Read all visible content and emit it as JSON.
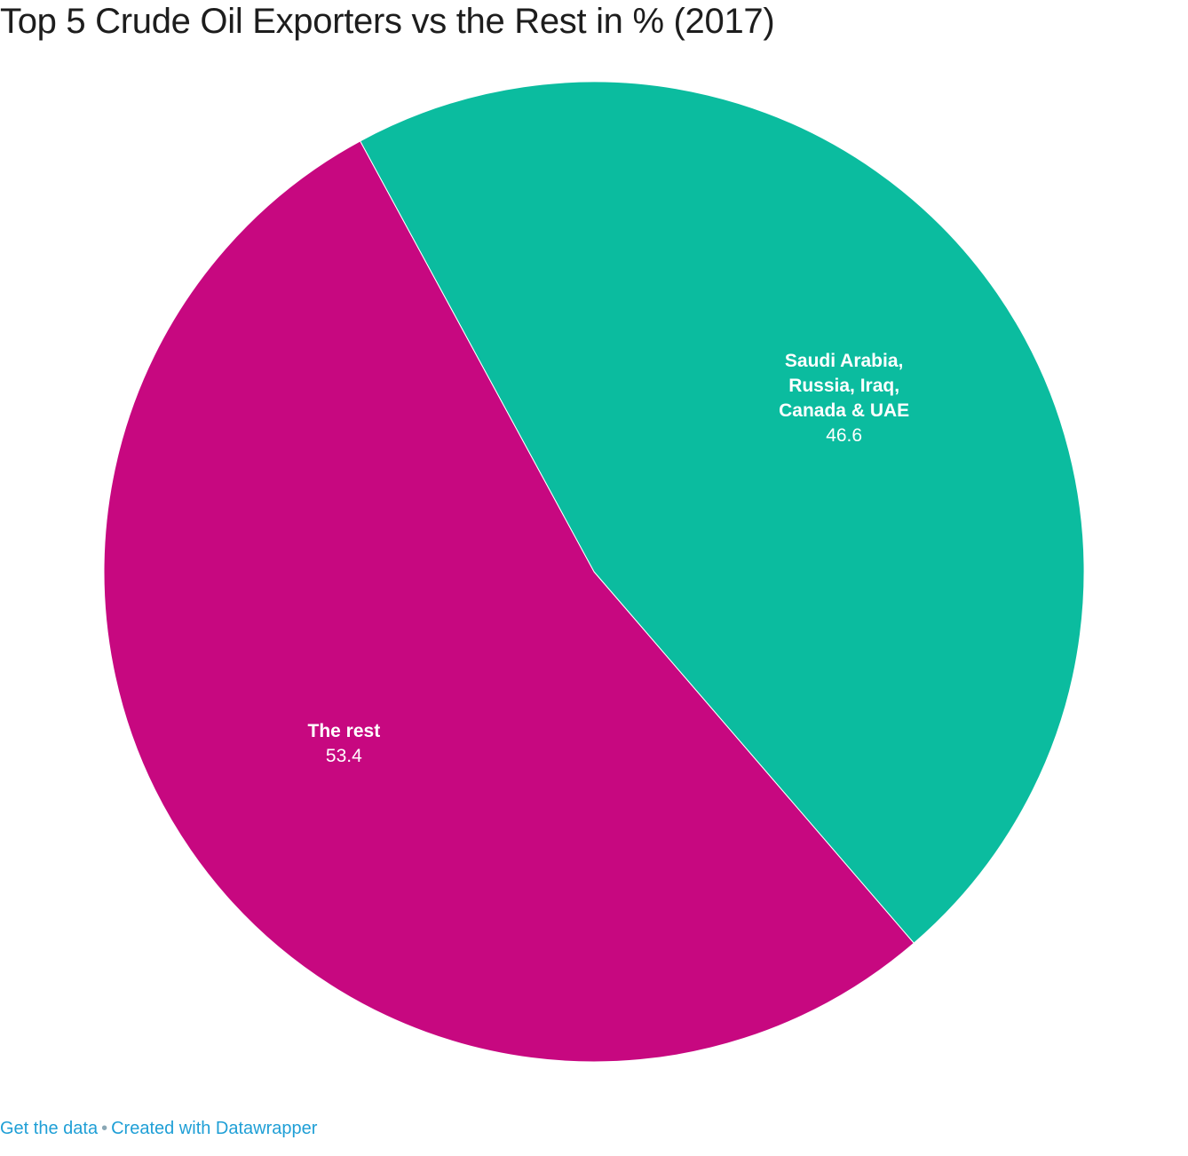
{
  "chart_data": {
    "type": "pie",
    "title": "Top 5 Crude Oil Exporters vs the Rest in % (2017)",
    "slices": [
      {
        "name_lines": [
          "Saudi Arabia,",
          "Russia, Iraq,",
          "Canada & UAE"
        ],
        "value": 46.6,
        "value_label": "46.6",
        "color": "#0bbc9f"
      },
      {
        "name_lines": [
          "The rest"
        ],
        "value": 53.4,
        "value_label": "53.4",
        "color": "#c70880"
      }
    ],
    "start_angle_deg": -28.5,
    "direction": "clockwise"
  },
  "footer": {
    "get_data": "Get the data",
    "separator": "•",
    "created_with": "Created with Datawrapper"
  }
}
